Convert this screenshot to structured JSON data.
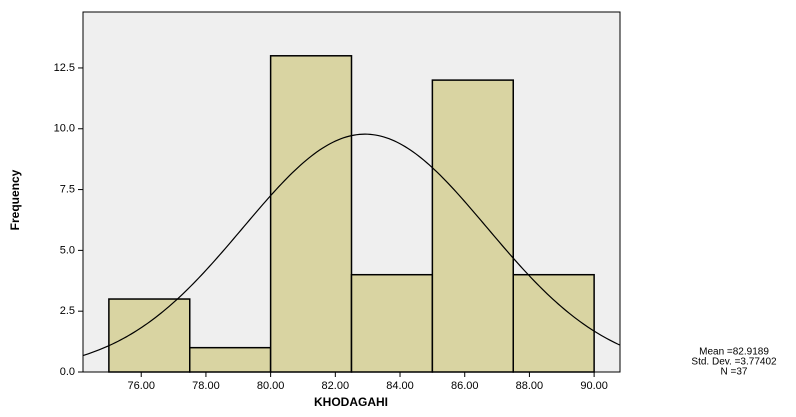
{
  "chart_data": {
    "type": "histogram",
    "x_label": "KHODAGAHI",
    "y_label": "Frequency",
    "bins": [
      75,
      77.5,
      80,
      82.5,
      85,
      87.5,
      90
    ],
    "values": [
      3,
      1,
      13,
      4,
      12,
      4
    ],
    "color": "#d9d4a2",
    "xlim": [
      74.2,
      90.8
    ],
    "xticks": [
      {
        "value": 76,
        "label": "76.00"
      },
      {
        "value": 78,
        "label": "78.00"
      },
      {
        "value": 80,
        "label": "80.00"
      },
      {
        "value": 82,
        "label": "82.00"
      },
      {
        "value": 84,
        "label": "84.00"
      },
      {
        "value": 86,
        "label": "86.00"
      },
      {
        "value": 88,
        "label": "88.00"
      },
      {
        "value": 90,
        "label": "90.00"
      }
    ],
    "ylim": [
      0,
      14.8
    ],
    "yticks": [
      {
        "value": 0,
        "label": "0.0"
      },
      2.5,
      {
        "value": 5,
        "label": "5.0"
      },
      7.5,
      {
        "value": 10,
        "label": "10.0"
      },
      12.5
    ],
    "stats": [
      {
        "value": 82.9189,
        "label": "Mean =82.9189"
      },
      {
        "value": 3.77402,
        "label": "Std. Dev. =3.77402"
      },
      {
        "value": 37,
        "label": "N =37"
      }
    ]
  }
}
